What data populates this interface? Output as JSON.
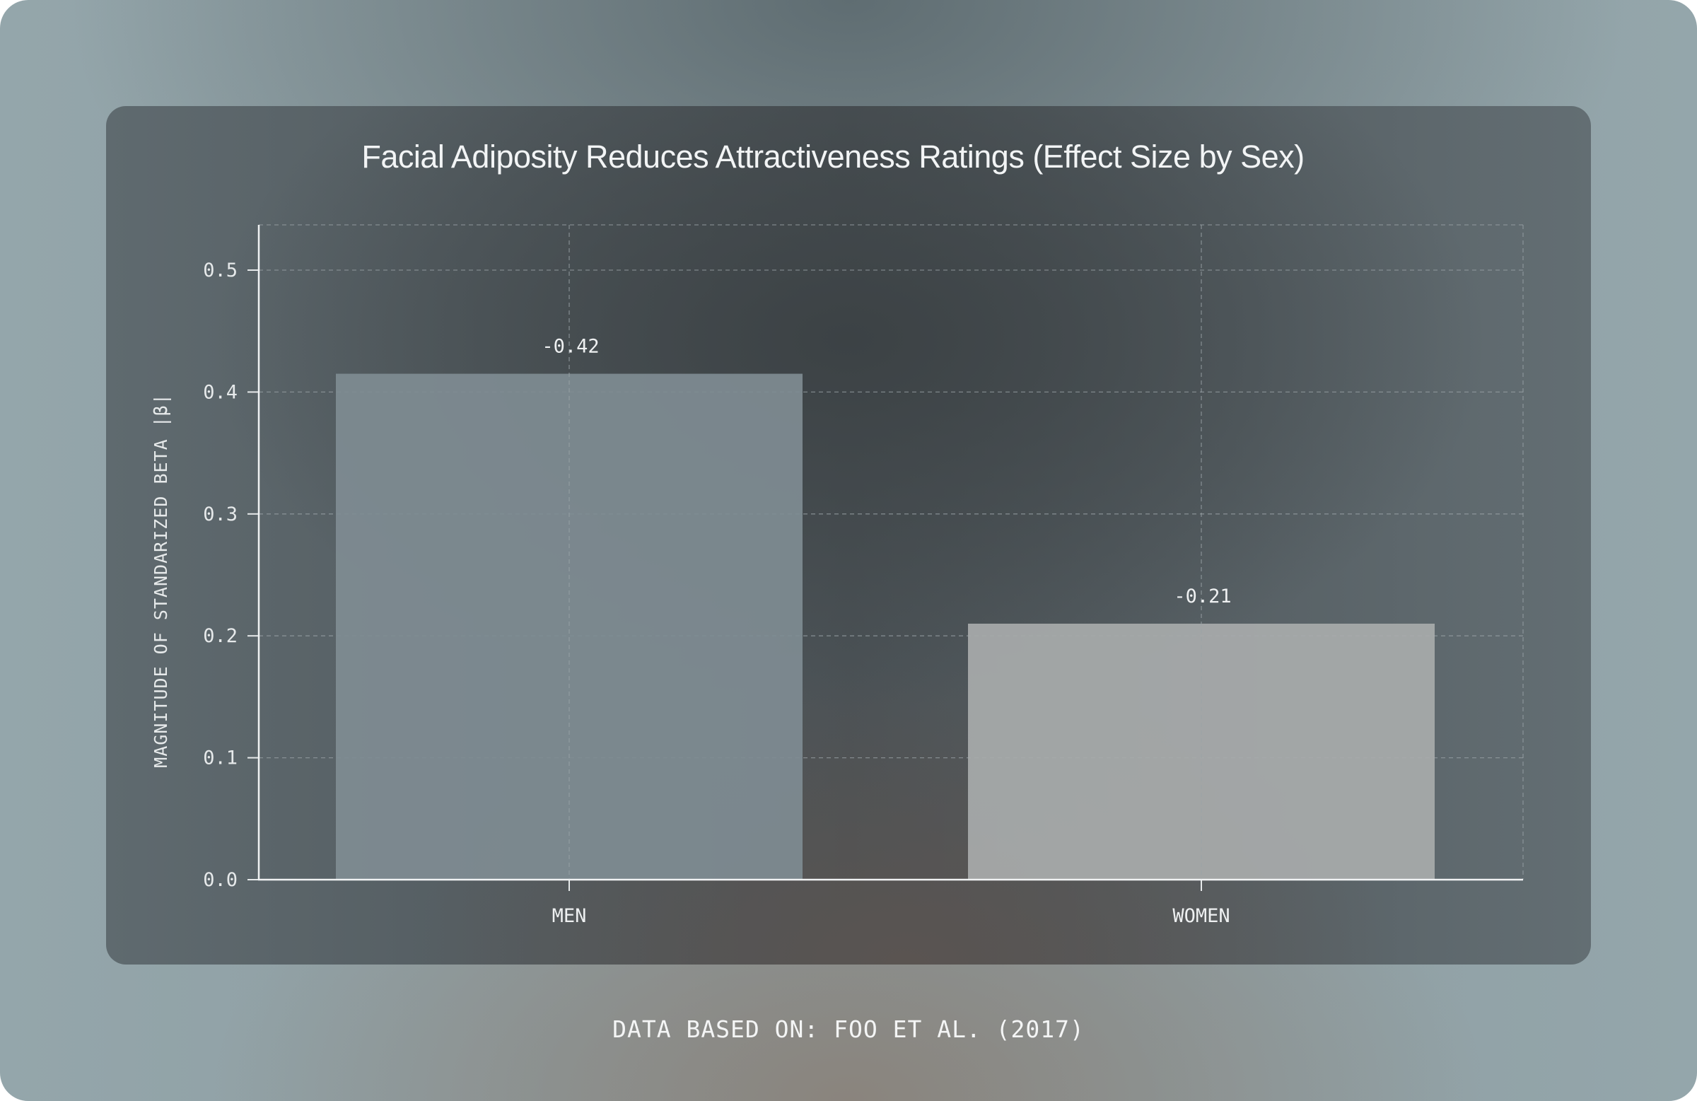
{
  "chart_data": {
    "type": "bar",
    "title": "Facial Adiposity Reduces Attractiveness Ratings (Effect Size by Sex)",
    "ylabel": "MAGNITUDE OF STANDARIZED BETA |β|",
    "xlabel": "",
    "categories": [
      "MEN",
      "WOMEN"
    ],
    "values": [
      0.415,
      0.21
    ],
    "value_labels": [
      "-0.42",
      "-0.21"
    ],
    "ylim": [
      0,
      0.5
    ],
    "yticks": [
      "0.0",
      "0.1",
      "0.2",
      "0.3",
      "0.4",
      "0.5"
    ],
    "grid": true,
    "colors": [
      "#7f8c92",
      "#a8abab"
    ]
  },
  "footer": {
    "source": "DATA BASED ON: FOO ET AL. (2017)"
  }
}
